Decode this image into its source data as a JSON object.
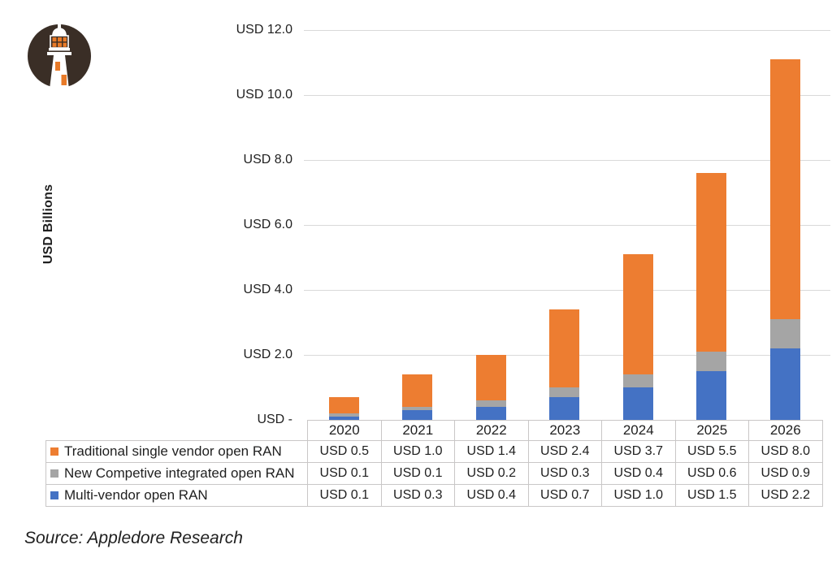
{
  "axis": {
    "y_title": "USD Billions",
    "tick_labels": [
      "USD -",
      "USD 2.0",
      "USD 4.0",
      "USD 6.0",
      "USD 8.0",
      "USD 10.0",
      "USD 12.0"
    ]
  },
  "chart_data": {
    "type": "bar",
    "stacked": true,
    "title": "",
    "ylabel": "USD Billions",
    "xlabel": "",
    "ylim": [
      0,
      12
    ],
    "ytick_step": 2,
    "grid": true,
    "legend_position": "table-left",
    "categories": [
      "2020",
      "2021",
      "2022",
      "2023",
      "2024",
      "2025",
      "2026"
    ],
    "series": [
      {
        "name": "Traditional single vendor open RAN",
        "color": "#ED7D31",
        "values": [
          0.5,
          1.0,
          1.4,
          2.4,
          3.7,
          5.5,
          8.0
        ],
        "formatted": [
          "USD 0.5",
          "USD 1.0",
          "USD 1.4",
          "USD 2.4",
          "USD 3.7",
          "USD 5.5",
          "USD 8.0"
        ]
      },
      {
        "name": "New Competive integrated open RAN",
        "color": "#A5A5A5",
        "values": [
          0.1,
          0.1,
          0.2,
          0.3,
          0.4,
          0.6,
          0.9
        ],
        "formatted": [
          "USD 0.1",
          "USD 0.1",
          "USD 0.2",
          "USD 0.3",
          "USD 0.4",
          "USD 0.6",
          "USD 0.9"
        ]
      },
      {
        "name": "Multi-vendor open RAN",
        "color": "#4472C4",
        "values": [
          0.1,
          0.3,
          0.4,
          0.7,
          1.0,
          1.5,
          2.2
        ],
        "formatted": [
          "USD 0.1",
          "USD 0.3",
          "USD 0.4",
          "USD 0.7",
          "USD 1.0",
          "USD 1.5",
          "USD 2.2"
        ]
      }
    ],
    "stack_order_bottom_to_top": [
      "Multi-vendor open RAN",
      "New Competive integrated open RAN",
      "Traditional single vendor open RAN"
    ]
  },
  "source_note": "Source: Appledore Research",
  "colors": {
    "orange": "#ED7D31",
    "gray": "#A5A5A5",
    "blue": "#4472C4",
    "gridline": "#D9D9D9",
    "table_border": "#C9C7C7",
    "text": "#1F1F1F",
    "logo_dark": "#3A2E26",
    "logo_orange": "#E87A28"
  }
}
